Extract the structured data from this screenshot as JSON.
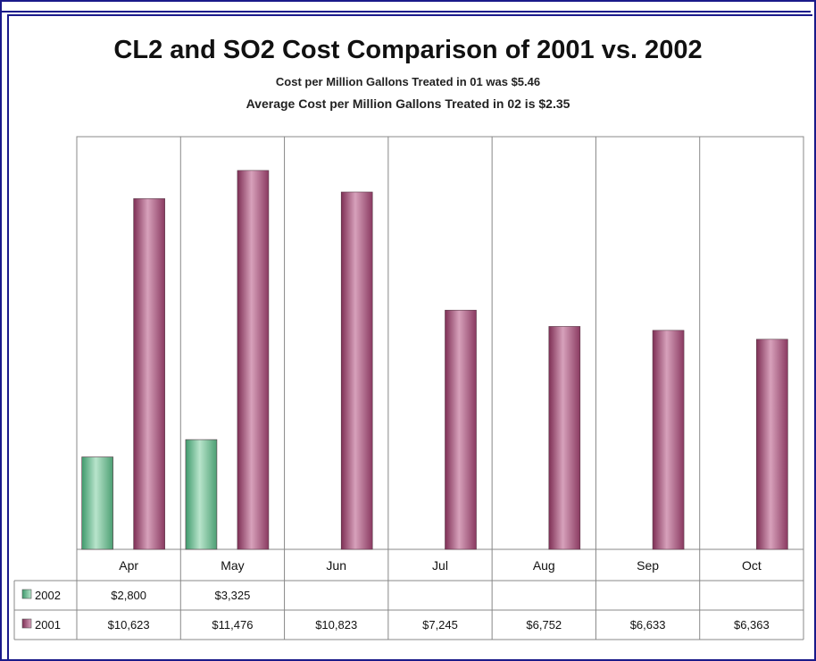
{
  "chart_data": {
    "type": "bar",
    "title": "CL2 and SO2 Cost Comparison of 2001 vs. 2002",
    "subtitle_1": "Cost per Million Gallons Treated in 01 was $5.46",
    "subtitle_2": "Average Cost per Million Gallons Treated in 02 is $2.35",
    "categories": [
      "Apr",
      "May",
      "Jun",
      "Jul",
      "Aug",
      "Sep",
      "Oct"
    ],
    "series": [
      {
        "name": "2002",
        "color": "#6fbf94",
        "values": [
          2800,
          3325,
          null,
          null,
          null,
          null,
          null
        ],
        "labels": [
          "$2,800",
          "$3,325",
          "",
          "",
          "",
          "",
          ""
        ]
      },
      {
        "name": "2001",
        "color": "#a8557a",
        "values": [
          10623,
          11476,
          10823,
          7245,
          6752,
          6633,
          6363
        ],
        "labels": [
          "$10,623",
          "$11,476",
          "$10,823",
          "$7,245",
          "$6,752",
          "$6,633",
          "$6,363"
        ]
      }
    ],
    "ylim": [
      0,
      12500
    ],
    "grid": false,
    "legend": "data-table"
  }
}
